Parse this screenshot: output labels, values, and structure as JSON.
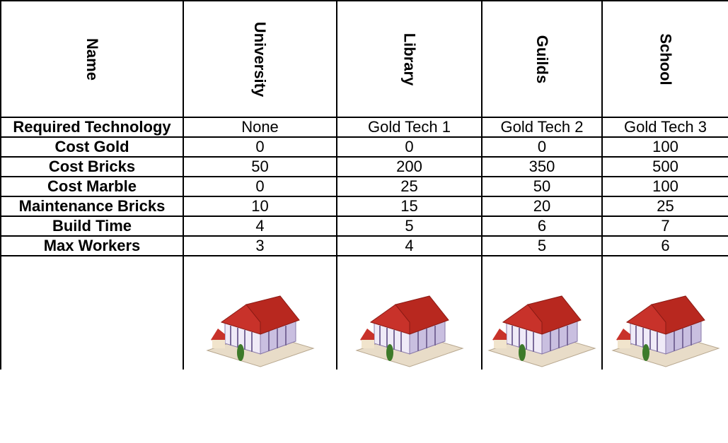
{
  "table": {
    "header": [
      "Name",
      "University",
      "Library",
      "Guilds",
      "School"
    ],
    "rows": [
      [
        "Required Technology",
        "None",
        "Gold Tech 1",
        "Gold Tech 2",
        "Gold Tech 3"
      ],
      [
        "Cost Gold",
        0,
        0,
        0,
        100
      ],
      [
        "Cost Bricks",
        50,
        200,
        350,
        500
      ],
      [
        "Cost Marble",
        0,
        25,
        50,
        100
      ],
      [
        "Maintenance Bricks",
        10,
        15,
        20,
        25
      ],
      [
        "Build Time",
        4,
        5,
        6,
        7
      ],
      [
        "Max Workers",
        3,
        4,
        5,
        6
      ]
    ]
  }
}
